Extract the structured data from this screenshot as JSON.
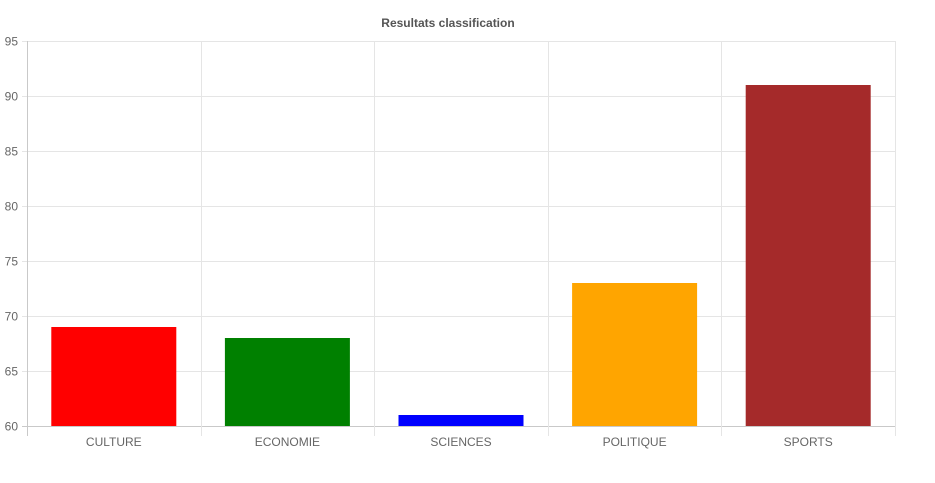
{
  "chart_data": {
    "type": "bar",
    "title": "Resultats classification",
    "xlabel": "",
    "ylabel": "",
    "categories": [
      "CULTURE",
      "ECONOMIE",
      "SCIENCES",
      "POLITIQUE",
      "SPORTS"
    ],
    "values": [
      69,
      68,
      61,
      73,
      91
    ],
    "colors": [
      "#ff0000",
      "#008000",
      "#0000ff",
      "#ffa500",
      "#a52a2a"
    ],
    "ylim": [
      60,
      95
    ],
    "yticks": [
      60,
      65,
      70,
      75,
      80,
      85,
      90,
      95
    ],
    "grid": true,
    "legend": "none"
  }
}
